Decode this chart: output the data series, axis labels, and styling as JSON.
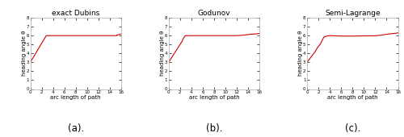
{
  "titles": [
    "exact Dubins",
    "Godunov",
    "Semi-Lagrange"
  ],
  "xlabel": "arc length of path",
  "ylabel": "heading angle θ",
  "xlim": [
    0,
    16
  ],
  "ylim": [
    0,
    8
  ],
  "xticks": [
    0,
    2,
    4,
    6,
    8,
    10,
    12,
    14,
    16
  ],
  "yticks": [
    0,
    1,
    2,
    3,
    4,
    5,
    6,
    7,
    8
  ],
  "line_color": "#cc0000",
  "line_width": 0.8,
  "subtitle_labels": [
    "(a).",
    "(b).",
    "(c)."
  ],
  "analytical": {
    "x": [
      0,
      2.8,
      2.8,
      15.2,
      15.2,
      16.0
    ],
    "y": [
      3.0,
      6.0,
      6.0,
      6.0,
      6.05,
      6.2
    ]
  },
  "godunov": {
    "x": [
      0,
      0.2,
      0.4,
      0.6,
      0.8,
      1.0,
      1.2,
      1.4,
      1.6,
      1.8,
      2.0,
      2.2,
      2.4,
      2.6,
      2.8,
      3.0,
      4.0,
      6.0,
      8.0,
      10.0,
      12.0,
      12.5,
      13.0,
      13.5,
      14.0,
      14.5,
      15.0,
      15.5,
      16.0
    ],
    "y": [
      3.0,
      3.2,
      3.4,
      3.6,
      3.8,
      4.0,
      4.2,
      4.4,
      4.6,
      4.8,
      5.0,
      5.2,
      5.4,
      5.7,
      5.9,
      6.0,
      6.0,
      6.0,
      6.0,
      6.0,
      6.0,
      6.02,
      6.05,
      6.08,
      6.12,
      6.16,
      6.18,
      6.2,
      6.25
    ]
  },
  "semi_lagrange": {
    "x": [
      0,
      0.3,
      0.6,
      0.9,
      1.2,
      1.5,
      1.8,
      2.1,
      2.4,
      2.7,
      3.0,
      3.5,
      4.0,
      6.0,
      8.0,
      10.0,
      12.0,
      12.5,
      13.0,
      13.5,
      14.0,
      14.5,
      15.0,
      15.5,
      16.0
    ],
    "y": [
      3.0,
      3.25,
      3.5,
      3.75,
      4.0,
      4.25,
      4.6,
      4.85,
      5.1,
      5.5,
      5.85,
      5.95,
      6.0,
      5.95,
      5.95,
      5.97,
      5.98,
      6.02,
      6.05,
      6.1,
      6.15,
      6.2,
      6.22,
      6.26,
      6.3
    ]
  },
  "bg_color": "#ffffff",
  "title_fontsize": 6.5,
  "axis_fontsize": 5.0,
  "tick_fontsize": 4.0,
  "subtitle_fontsize": 8.5
}
